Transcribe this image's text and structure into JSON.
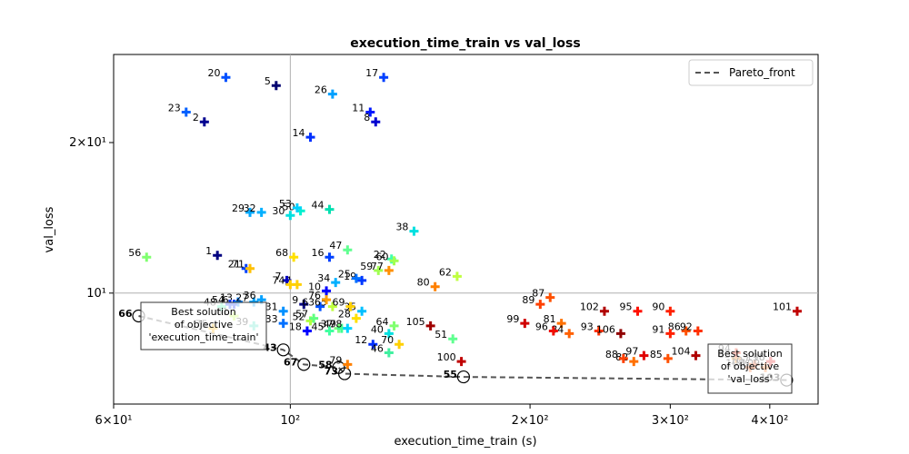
{
  "chart_data": {
    "type": "scatter",
    "title": "execution_time_train vs val_loss",
    "xlabel": "execution_time_train (s)",
    "ylabel": "val_loss",
    "xscale": "log",
    "yscale": "log",
    "xlim": [
      60,
      460
    ],
    "ylim": [
      6.0,
      30.0
    ],
    "x_ticks": [
      {
        "value": 60,
        "label": "6×10¹"
      },
      {
        "value": 100,
        "label": "10²"
      },
      {
        "value": 200,
        "label": "2×10²"
      },
      {
        "value": 300,
        "label": "3×10²"
      },
      {
        "value": 400,
        "label": "4×10²"
      }
    ],
    "y_ticks": [
      {
        "value": 10,
        "label": "10¹"
      },
      {
        "value": 20,
        "label": "2×10¹"
      }
    ],
    "legend": {
      "entries": [
        "Pareto_front"
      ],
      "position": "top-right"
    },
    "reference_lines": {
      "x": 100,
      "y": 10
    },
    "annotations": [
      {
        "text": "Best solution\nof objective\n'execution_time_train'",
        "anchor": [
          64.5,
          9.0
        ]
      },
      {
        "text": "Best solution\nof objective\n'val_loss'",
        "anchor": [
          420,
          6.9
        ]
      }
    ],
    "pareto_front": [
      {
        "id": 66,
        "x": 64.5,
        "y": 9.0
      },
      {
        "id": 43,
        "x": 98,
        "y": 7.7
      },
      {
        "id": 67,
        "x": 104,
        "y": 7.2
      },
      {
        "id": 58,
        "x": 115,
        "y": 7.1
      },
      {
        "id": 73,
        "x": 117,
        "y": 6.9
      },
      {
        "id": 55,
        "x": 165,
        "y": 6.8
      },
      {
        "id": 103,
        "x": 420,
        "y": 6.7
      }
    ],
    "points": [
      {
        "id": 1,
        "x": 81,
        "y": 11.9,
        "c": "#000080"
      },
      {
        "id": 2,
        "x": 78,
        "y": 22.0,
        "c": "#000090"
      },
      {
        "id": 4,
        "x": 102,
        "y": 10.4,
        "c": "#ffd000"
      },
      {
        "id": 5,
        "x": 96,
        "y": 26.0,
        "c": "#000070"
      },
      {
        "id": 6,
        "x": 85,
        "y": 9.5,
        "c": "#0020ff"
      },
      {
        "id": 7,
        "x": 99,
        "y": 10.6,
        "c": "#0000c0"
      },
      {
        "id": 8,
        "x": 128,
        "y": 22.0,
        "c": "#0000d0"
      },
      {
        "id": 9,
        "x": 104,
        "y": 9.5,
        "c": "#000080"
      },
      {
        "id": 10,
        "x": 111,
        "y": 10.1,
        "c": "#0000ff"
      },
      {
        "id": 11,
        "x": 126,
        "y": 23.0,
        "c": "#0018ff"
      },
      {
        "id": 12,
        "x": 127,
        "y": 7.9,
        "c": "#0030ff"
      },
      {
        "id": 13,
        "x": 86,
        "y": 9.6,
        "c": "#0080ff"
      },
      {
        "id": 14,
        "x": 106,
        "y": 20.5,
        "c": "#0030ff"
      },
      {
        "id": 16,
        "x": 112,
        "y": 11.8,
        "c": "#0040ff"
      },
      {
        "id": 17,
        "x": 131,
        "y": 27.0,
        "c": "#0040ff"
      },
      {
        "id": 18,
        "x": 105,
        "y": 8.4,
        "c": "#0000ff"
      },
      {
        "id": 19,
        "x": 123,
        "y": 10.6,
        "c": "#0038ff"
      },
      {
        "id": 20,
        "x": 83,
        "y": 27.0,
        "c": "#0050ff"
      },
      {
        "id": 21,
        "x": 88,
        "y": 11.2,
        "c": "#0040ff"
      },
      {
        "id": 22,
        "x": 134,
        "y": 11.7,
        "c": "#40ffb0"
      },
      {
        "id": 23,
        "x": 74,
        "y": 23.0,
        "c": "#0060ff"
      },
      {
        "id": 25,
        "x": 121,
        "y": 10.7,
        "c": "#0070ff"
      },
      {
        "id": 26,
        "x": 113,
        "y": 25.0,
        "c": "#00a0ff"
      },
      {
        "id": 27,
        "x": 90,
        "y": 9.6,
        "c": "#00a0ff"
      },
      {
        "id": 28,
        "x": 121,
        "y": 8.9,
        "c": "#ffe000"
      },
      {
        "id": 29,
        "x": 89,
        "y": 14.5,
        "c": "#00a8ff"
      },
      {
        "id": 30,
        "x": 100,
        "y": 14.3,
        "c": "#00e0e0"
      },
      {
        "id": 31,
        "x": 98,
        "y": 9.2,
        "c": "#0090ff"
      },
      {
        "id": 32,
        "x": 92,
        "y": 14.5,
        "c": "#00b0ff"
      },
      {
        "id": 33,
        "x": 98,
        "y": 8.7,
        "c": "#0070ff"
      },
      {
        "id": 34,
        "x": 114,
        "y": 10.5,
        "c": "#00b0ff"
      },
      {
        "id": 35,
        "x": 123,
        "y": 9.2,
        "c": "#00c0ff"
      },
      {
        "id": 36,
        "x": 92,
        "y": 9.7,
        "c": "#00a0ff"
      },
      {
        "id": 37,
        "x": 115,
        "y": 8.5,
        "c": "#80ff80"
      },
      {
        "id": 38,
        "x": 143,
        "y": 13.3,
        "c": "#00e0e0"
      },
      {
        "id": 39,
        "x": 90,
        "y": 8.6,
        "c": "#40e0c0"
      },
      {
        "id": 40,
        "x": 133,
        "y": 8.3,
        "c": "#00e0e0"
      },
      {
        "id": 44,
        "x": 112,
        "y": 14.7,
        "c": "#00e0b0"
      },
      {
        "id": 45,
        "x": 112,
        "y": 8.4,
        "c": "#40ffa0"
      },
      {
        "id": 46,
        "x": 133,
        "y": 7.6,
        "c": "#40f0a0"
      },
      {
        "id": 47,
        "x": 118,
        "y": 12.2,
        "c": "#60ff90"
      },
      {
        "id": 48,
        "x": 82,
        "y": 9.4,
        "c": "#40ffb0"
      },
      {
        "id": 49,
        "x": 116,
        "y": 8.5,
        "c": "#40ff90"
      },
      {
        "id": 50,
        "x": 103,
        "y": 14.6,
        "c": "#00f0d0"
      },
      {
        "id": 51,
        "x": 160,
        "y": 8.1,
        "c": "#60ff90"
      },
      {
        "id": 52,
        "x": 106,
        "y": 8.8,
        "c": "#b0ff40"
      },
      {
        "id": 53,
        "x": 102,
        "y": 14.8,
        "c": "#00d0ff"
      },
      {
        "id": 54,
        "x": 84,
        "y": 9.5,
        "c": "#0030ff"
      },
      {
        "id": 56,
        "x": 66,
        "y": 11.8,
        "c": "#80ff70"
      },
      {
        "id": 57,
        "x": 107,
        "y": 8.9,
        "c": "#60ff80"
      },
      {
        "id": 59,
        "x": 129,
        "y": 11.1,
        "c": "#a0ff50"
      },
      {
        "id": 60,
        "x": 135,
        "y": 11.6,
        "c": "#a0ff50"
      },
      {
        "id": 61,
        "x": 85,
        "y": 9.0,
        "c": "#c0ff40"
      },
      {
        "id": 62,
        "x": 162,
        "y": 10.8,
        "c": "#c0ff40"
      },
      {
        "id": 63,
        "x": 109,
        "y": 9.4,
        "c": "#0050ff"
      },
      {
        "id": 64,
        "x": 135,
        "y": 8.6,
        "c": "#80ff70"
      },
      {
        "id": 65,
        "x": 113,
        "y": 9.4,
        "c": "#c0ff40"
      },
      {
        "id": 68,
        "x": 101,
        "y": 11.8,
        "c": "#ffe000"
      },
      {
        "id": 69,
        "x": 119,
        "y": 9.4,
        "c": "#ffd000"
      },
      {
        "id": 70,
        "x": 137,
        "y": 7.9,
        "c": "#ffd000"
      },
      {
        "id": 71,
        "x": 89,
        "y": 11.2,
        "c": "#ffc000"
      },
      {
        "id": 74,
        "x": 100,
        "y": 10.4,
        "c": "#ffd000"
      },
      {
        "id": 75,
        "x": 80,
        "y": 8.5,
        "c": "#ffb000"
      },
      {
        "id": 76,
        "x": 111,
        "y": 9.7,
        "c": "#ffa000"
      },
      {
        "id": 77,
        "x": 133,
        "y": 11.1,
        "c": "#ff9000"
      },
      {
        "id": 78,
        "x": 118,
        "y": 8.5,
        "c": "#00d0ff"
      },
      {
        "id": 79,
        "x": 118,
        "y": 7.2,
        "c": "#ff8000"
      },
      {
        "id": 80,
        "x": 152,
        "y": 10.3,
        "c": "#ff8000"
      },
      {
        "id": 81,
        "x": 219,
        "y": 8.7,
        "c": "#ff7000"
      },
      {
        "id": 82,
        "x": 270,
        "y": 7.3,
        "c": "#ff7000"
      },
      {
        "id": 83,
        "x": 363,
        "y": 7.4,
        "c": "#ff8000"
      },
      {
        "id": 84,
        "x": 224,
        "y": 8.3,
        "c": "#ff6000"
      },
      {
        "id": 85,
        "x": 298,
        "y": 7.4,
        "c": "#ff5000"
      },
      {
        "id": 86,
        "x": 314,
        "y": 8.4,
        "c": "#ff5000"
      },
      {
        "id": 87,
        "x": 212,
        "y": 9.8,
        "c": "#ff5000"
      },
      {
        "id": 88,
        "x": 262,
        "y": 7.4,
        "c": "#ff4000"
      },
      {
        "id": 89,
        "x": 206,
        "y": 9.5,
        "c": "#ff4000"
      },
      {
        "id": 90,
        "x": 300,
        "y": 9.2,
        "c": "#ff2000"
      },
      {
        "id": 91,
        "x": 300,
        "y": 8.3,
        "c": "#ff2000"
      },
      {
        "id": 92,
        "x": 325,
        "y": 8.4,
        "c": "#ff3000"
      },
      {
        "id": 93,
        "x": 244,
        "y": 8.4,
        "c": "#ff3000"
      },
      {
        "id": 94,
        "x": 363,
        "y": 7.6,
        "c": "#ff2000"
      },
      {
        "id": 95,
        "x": 273,
        "y": 9.2,
        "c": "#ff1000"
      },
      {
        "id": 96,
        "x": 214,
        "y": 8.4,
        "c": "#f01000"
      },
      {
        "id": 97,
        "x": 278,
        "y": 7.5,
        "c": "#e00000"
      },
      {
        "id": 98,
        "x": 401,
        "y": 7.3,
        "c": "#d00000"
      },
      {
        "id": 99,
        "x": 197,
        "y": 8.7,
        "c": "#d00000"
      },
      {
        "id": 100,
        "x": 164,
        "y": 7.3,
        "c": "#c00000"
      },
      {
        "id": 101,
        "x": 433,
        "y": 9.2,
        "c": "#c00000"
      },
      {
        "id": 102,
        "x": 248,
        "y": 9.2,
        "c": "#b00000"
      },
      {
        "id": 104,
        "x": 323,
        "y": 7.5,
        "c": "#b00000"
      },
      {
        "id": 105,
        "x": 150,
        "y": 8.6,
        "c": "#a00000"
      },
      {
        "id": 106,
        "x": 260,
        "y": 8.3,
        "c": "#900000"
      },
      {
        "id": 107,
        "x": 383,
        "y": 7.2,
        "c": "#ff4000"
      },
      {
        "id": 108,
        "x": 378,
        "y": 7.1,
        "c": "#ff5000"
      },
      {
        "id": 109,
        "x": 395,
        "y": 7.1,
        "c": "#ff6000"
      },
      {
        "id": 110,
        "x": 401,
        "y": 7.3,
        "c": "#e00000"
      }
    ]
  }
}
